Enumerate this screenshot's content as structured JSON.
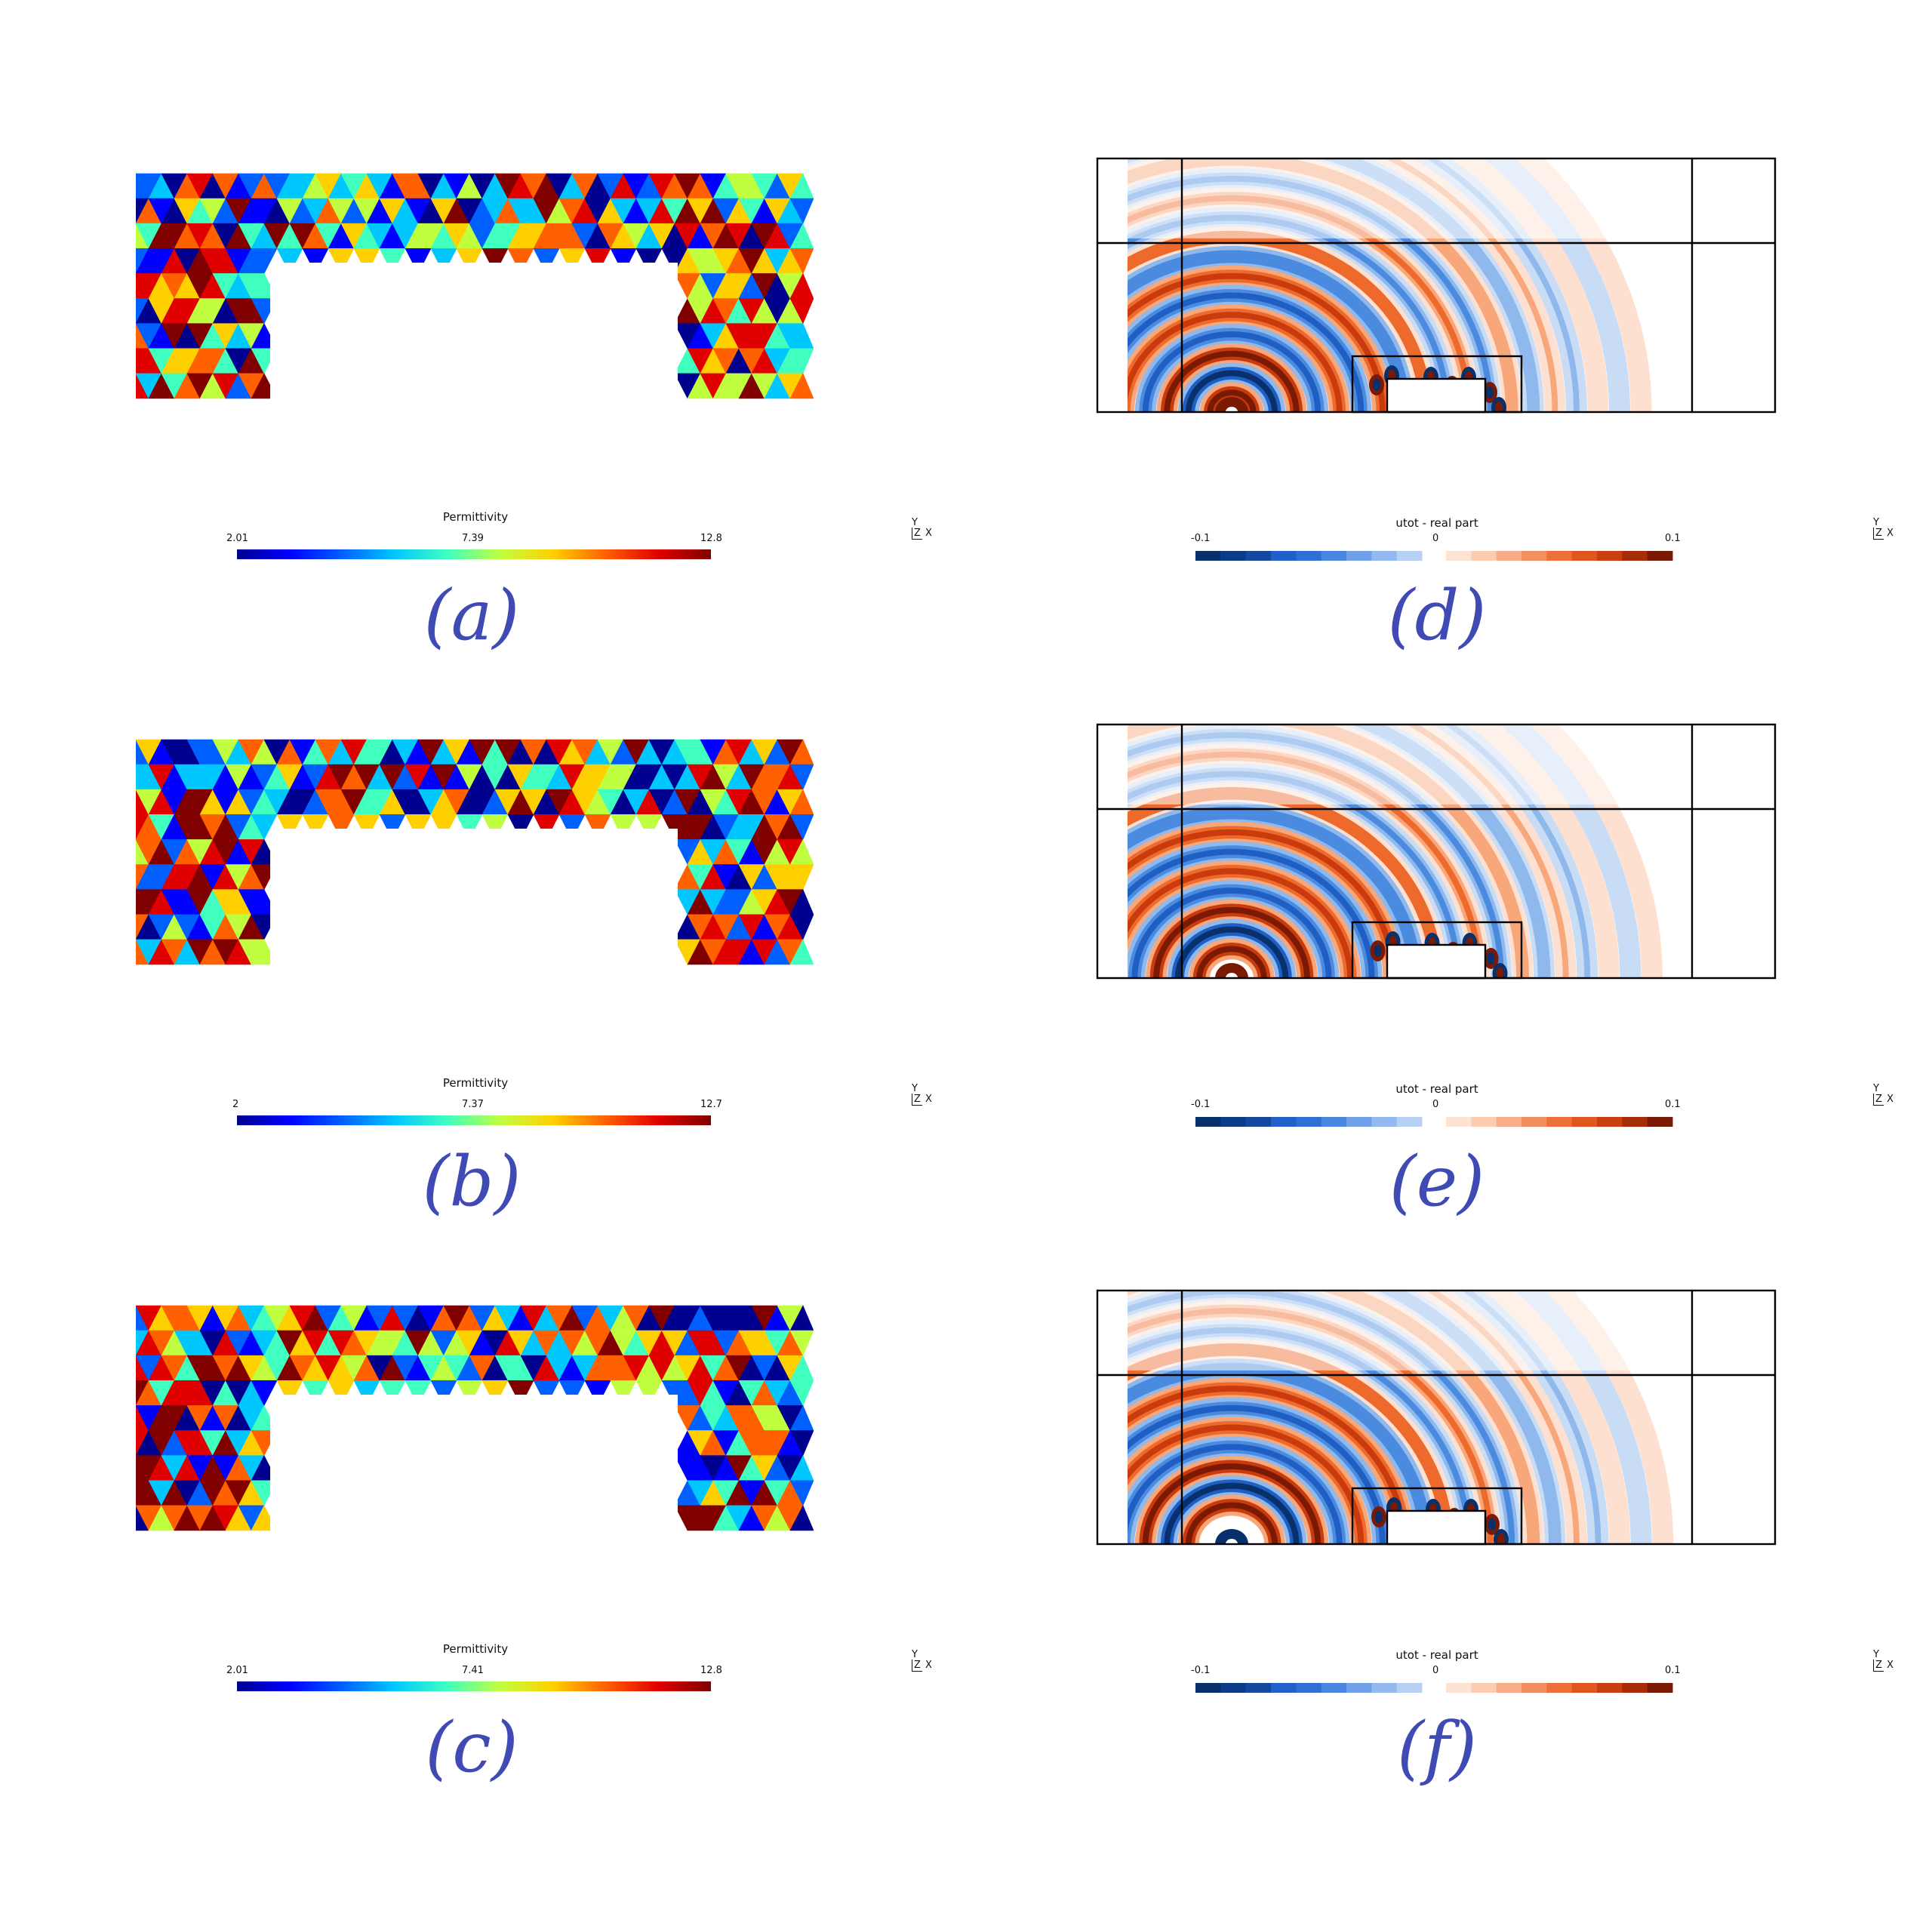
{
  "figure": {
    "panels_left": [
      {
        "id": "a",
        "caption": "(a)",
        "colorbar": {
          "title": "Permittivity",
          "min": "2.01",
          "mid": "7.39",
          "max": "12.8",
          "colormap": "jet"
        }
      },
      {
        "id": "b",
        "caption": "(b)",
        "colorbar": {
          "title": "Permittivity",
          "min": "2",
          "mid": "7.37",
          "max": "12.7",
          "colormap": "jet"
        }
      },
      {
        "id": "c",
        "caption": "(c)",
        "colorbar": {
          "title": "Permittivity",
          "min": "2.01",
          "mid": "7.41",
          "max": "12.8",
          "colormap": "jet"
        }
      }
    ],
    "panels_right": [
      {
        "id": "d",
        "caption": "(d)",
        "colorbar": {
          "title": "utot - real part",
          "min": "-0.1",
          "mid": "0",
          "max": "0.1",
          "colormap": "diverging blue-white-red"
        }
      },
      {
        "id": "e",
        "caption": "(e)",
        "colorbar": {
          "title": "utot - real part",
          "min": "-0.1",
          "mid": "0",
          "max": "0.1",
          "colormap": "diverging blue-white-red"
        }
      },
      {
        "id": "f",
        "caption": "(f)",
        "colorbar": {
          "title": "utot - real part",
          "min": "-0.1",
          "mid": "0",
          "max": "0.1",
          "colormap": "diverging blue-white-red"
        }
      }
    ],
    "axes_triad": {
      "y": "Y",
      "z": "Z",
      "x": "X"
    }
  },
  "colors": {
    "caption": "#3f4ab5",
    "jet": [
      "#00008f",
      "#0000ff",
      "#0060ff",
      "#00c8ff",
      "#40ffbf",
      "#c0ff40",
      "#ffd000",
      "#ff6000",
      "#e00000",
      "#800000"
    ],
    "diverging": [
      "#08306b",
      "#1f5fc4",
      "#4a8be0",
      "#8fb8ec",
      "#c9dcf5",
      "#ffffff",
      "#fde0cf",
      "#f7a77a",
      "#ee6a2c",
      "#c93a0c",
      "#7a1a04"
    ]
  }
}
